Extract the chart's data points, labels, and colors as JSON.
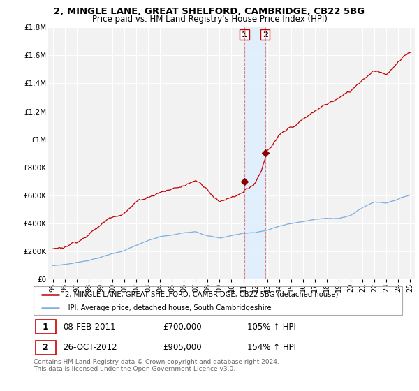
{
  "title1": "2, MINGLE LANE, GREAT SHELFORD, CAMBRIDGE, CB22 5BG",
  "title2": "Price paid vs. HM Land Registry's House Price Index (HPI)",
  "ylabel_ticks": [
    "£0",
    "£200K",
    "£400K",
    "£600K",
    "£800K",
    "£1M",
    "£1.2M",
    "£1.4M",
    "£1.6M",
    "£1.8M"
  ],
  "ytick_values": [
    0,
    200000,
    400000,
    600000,
    800000,
    1000000,
    1200000,
    1400000,
    1600000,
    1800000
  ],
  "sale1_year": 2011.08,
  "sale1_price": 700000,
  "sale2_year": 2012.82,
  "sale2_price": 905000,
  "legend_line1": "2, MINGLE LANE, GREAT SHELFORD, CAMBRIDGE, CB22 5BG (detached house)",
  "legend_line2": "HPI: Average price, detached house, South Cambridgeshire",
  "footer": "Contains HM Land Registry data © Crown copyright and database right 2024.\nThis data is licensed under the Open Government Licence v3.0.",
  "hpi_color": "#7aafe0",
  "price_color": "#c00000",
  "shade_color": "#ddeeff",
  "bg_color": "#f2f2f2",
  "grid_color": "#ffffff"
}
